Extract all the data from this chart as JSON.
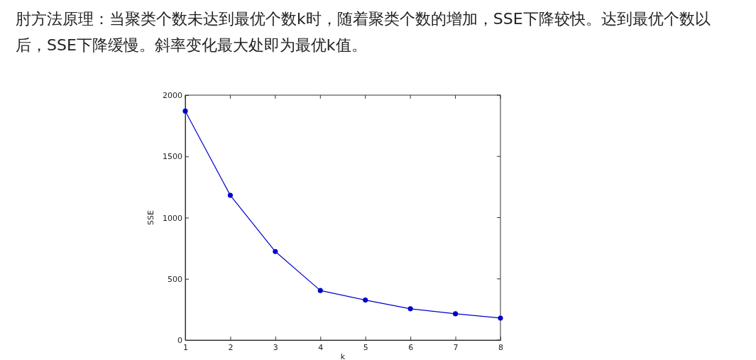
{
  "chart_data": {
    "type": "line",
    "title": "肘方法原理：当聚类个数未达到最优个数k时，随着聚类个数的增加，SSE下降较快。达到最优个数以后，SSE下降缓慢。斜率变化最大处即为最优k值。",
    "x": [
      1,
      2,
      3,
      4,
      5,
      6,
      7,
      8
    ],
    "series": [
      {
        "color": "#0000cc",
        "values": [
          1870,
          1182,
          723,
          405,
          327,
          256,
          215,
          180
        ]
      }
    ],
    "xlim": [
      1,
      8
    ],
    "xticks": [
      1,
      2,
      3,
      4,
      5,
      6,
      7,
      8
    ],
    "ylim": [
      0,
      2000
    ],
    "yticks": [
      0,
      500,
      1000,
      1500,
      2000
    ],
    "xlabel": "k",
    "ylabel": "SSE",
    "marker": "circle",
    "line_style": "solid"
  }
}
